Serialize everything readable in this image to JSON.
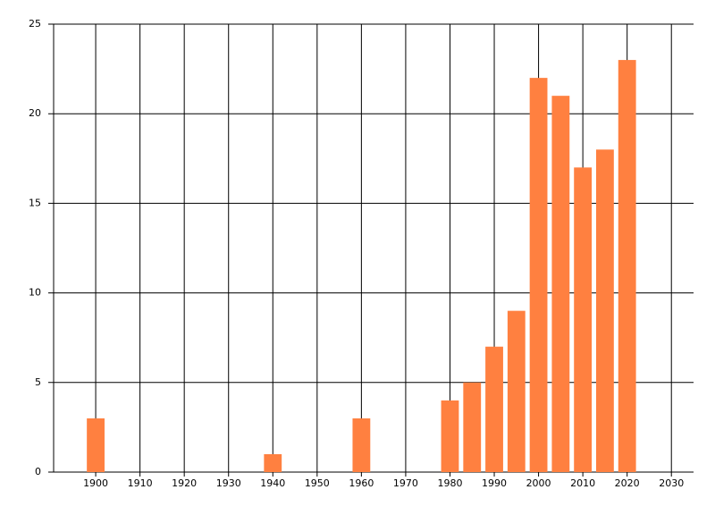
{
  "chart_data": {
    "type": "bar",
    "x": [
      1900,
      1940,
      1960,
      1980,
      1985,
      1990,
      1995,
      2000,
      2005,
      2010,
      2015,
      2020
    ],
    "values": [
      3,
      1,
      3,
      4,
      5,
      7,
      9,
      22,
      21,
      17,
      18,
      23
    ],
    "color": "#ff8040",
    "xlim": [
      1890.5,
      2035
    ],
    "xticks": [
      1900,
      1910,
      1920,
      1930,
      1940,
      1950,
      1960,
      1970,
      1980,
      1990,
      2000,
      2010,
      2020,
      2030
    ],
    "ylim": [
      0,
      25
    ],
    "yticks": [
      0,
      5,
      10,
      15,
      20,
      25
    ],
    "grid": true
  }
}
